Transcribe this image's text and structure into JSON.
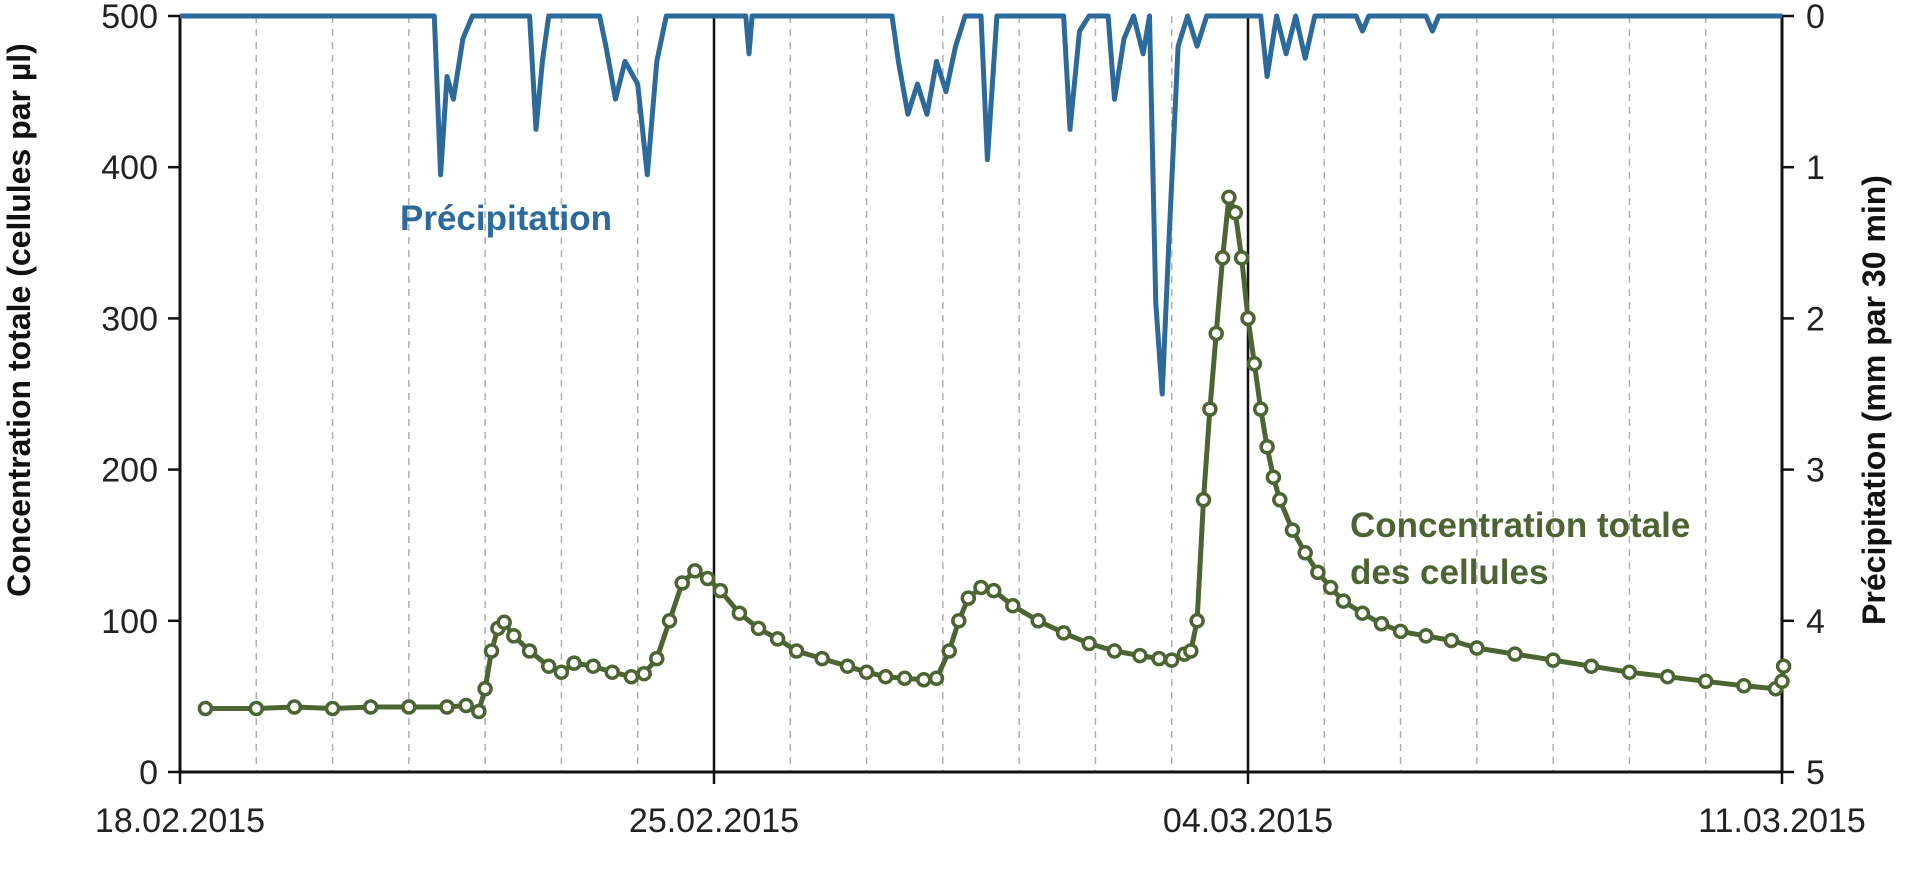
{
  "chart_data": {
    "type": "line",
    "x_axis": {
      "type": "date",
      "range": [
        "2015-02-18",
        "2015-03-11"
      ],
      "tick_labels": [
        "18.02.2015",
        "25.02.2015",
        "04.03.2015",
        "11.03.2015"
      ],
      "major_ticks": [
        "2015-02-18",
        "2015-02-25",
        "2015-03-04",
        "2015-03-11"
      ],
      "minor_gridlines": "daily, dashed"
    },
    "y_left": {
      "label": "Concentration totale (cellules par µl)",
      "range": [
        0,
        500
      ],
      "ticks": [
        "0",
        "100",
        "200",
        "300",
        "400",
        "500"
      ]
    },
    "y_right": {
      "label": "Précipitation (mm par 30 min)",
      "range": [
        0,
        5
      ],
      "inverted": true,
      "ticks": [
        "0",
        "1",
        "2",
        "3",
        "4",
        "5"
      ]
    },
    "series": [
      {
        "name": "Précipitation",
        "label": "Précipitation",
        "axis": "right",
        "color": "#2d6a9c",
        "marker": "none",
        "points": [
          [
            "2015-02-18",
            0
          ],
          [
            "2015-02-21 08:00",
            0
          ],
          [
            "2015-02-21 10:00",
            1.05
          ],
          [
            "2015-02-21 12:00",
            0.4
          ],
          [
            "2015-02-21 14:00",
            0.55
          ],
          [
            "2015-02-21 17:00",
            0.15
          ],
          [
            "2015-02-21 20:00",
            0
          ],
          [
            "2015-02-22 14:00",
            0
          ],
          [
            "2015-02-22 16:00",
            0.75
          ],
          [
            "2015-02-22 18:00",
            0.3
          ],
          [
            "2015-02-22 20:00",
            0
          ],
          [
            "2015-02-23 12:00",
            0
          ],
          [
            "2015-02-23 14:00",
            0.2
          ],
          [
            "2015-02-23 17:00",
            0.55
          ],
          [
            "2015-02-23 20:00",
            0.3
          ],
          [
            "2015-02-24 00:00",
            0.45
          ],
          [
            "2015-02-24 03:00",
            1.05
          ],
          [
            "2015-02-24 06:00",
            0.3
          ],
          [
            "2015-02-24 09:00",
            0
          ],
          [
            "2015-02-25 10:00",
            0
          ],
          [
            "2015-02-25 11:00",
            0.25
          ],
          [
            "2015-02-25 12:00",
            0
          ],
          [
            "2015-02-27 08:00",
            0
          ],
          [
            "2015-02-27 10:00",
            0.3
          ],
          [
            "2015-02-27 13:00",
            0.65
          ],
          [
            "2015-02-27 16:00",
            0.45
          ],
          [
            "2015-02-27 19:00",
            0.65
          ],
          [
            "2015-02-27 22:00",
            0.3
          ],
          [
            "2015-02-28 01:00",
            0.5
          ],
          [
            "2015-02-28 04:00",
            0.2
          ],
          [
            "2015-02-28 07:00",
            0
          ],
          [
            "2015-02-28 12:00",
            0
          ],
          [
            "2015-02-28 14:00",
            0.95
          ],
          [
            "2015-02-28 17:00",
            0
          ],
          [
            "2015-03-01 14:00",
            0
          ],
          [
            "2015-03-01 16:00",
            0.75
          ],
          [
            "2015-03-01 19:00",
            0.1
          ],
          [
            "2015-03-01 22:00",
            0
          ],
          [
            "2015-03-02 04:00",
            0
          ],
          [
            "2015-03-02 06:00",
            0.55
          ],
          [
            "2015-03-02 09:00",
            0.15
          ],
          [
            "2015-03-02 12:00",
            0
          ],
          [
            "2015-03-02 15:00",
            0.25
          ],
          [
            "2015-03-02 17:00",
            0
          ],
          [
            "2015-03-02 19:00",
            1.9
          ],
          [
            "2015-03-02 21:00",
            2.5
          ],
          [
            "2015-03-02 23:00",
            1.55
          ],
          [
            "2015-03-03 02:00",
            0.2
          ],
          [
            "2015-03-03 05:00",
            0
          ],
          [
            "2015-03-03 08:00",
            0.2
          ],
          [
            "2015-03-03 11:00",
            0
          ],
          [
            "2015-03-04 04:00",
            0
          ],
          [
            "2015-03-04 06:00",
            0.4
          ],
          [
            "2015-03-04 09:00",
            0
          ],
          [
            "2015-03-04 12:00",
            0.25
          ],
          [
            "2015-03-04 15:00",
            0
          ],
          [
            "2015-03-04 18:00",
            0.28
          ],
          [
            "2015-03-04 21:00",
            0
          ],
          [
            "2015-03-05 10:00",
            0
          ],
          [
            "2015-03-05 12:00",
            0.1
          ],
          [
            "2015-03-05 14:00",
            0
          ],
          [
            "2015-03-06 08:00",
            0
          ],
          [
            "2015-03-06 10:00",
            0.1
          ],
          [
            "2015-03-06 12:00",
            0
          ],
          [
            "2015-03-11",
            0
          ]
        ]
      },
      {
        "name": "Concentration totale des cellules",
        "label_lines": [
          "Concentration totale",
          "des cellules"
        ],
        "axis": "left",
        "color": "#4a6531",
        "marker": "open-circle",
        "points": [
          [
            "2015-02-18 08:00",
            42
          ],
          [
            "2015-02-19 00:00",
            42
          ],
          [
            "2015-02-19 12:00",
            43
          ],
          [
            "2015-02-20 00:00",
            42
          ],
          [
            "2015-02-20 12:00",
            43
          ],
          [
            "2015-02-21 00:00",
            43
          ],
          [
            "2015-02-21 12:00",
            43
          ],
          [
            "2015-02-21 18:00",
            44
          ],
          [
            "2015-02-21 22:00",
            40
          ],
          [
            "2015-02-22 00:00",
            55
          ],
          [
            "2015-02-22 02:00",
            80
          ],
          [
            "2015-02-22 04:00",
            95
          ],
          [
            "2015-02-22 06:00",
            99
          ],
          [
            "2015-02-22 09:00",
            90
          ],
          [
            "2015-02-22 14:00",
            80
          ],
          [
            "2015-02-22 20:00",
            70
          ],
          [
            "2015-02-23 00:00",
            66
          ],
          [
            "2015-02-23 04:00",
            72
          ],
          [
            "2015-02-23 10:00",
            70
          ],
          [
            "2015-02-23 16:00",
            66
          ],
          [
            "2015-02-23 22:00",
            63
          ],
          [
            "2015-02-24 02:00",
            65
          ],
          [
            "2015-02-24 06:00",
            75
          ],
          [
            "2015-02-24 10:00",
            100
          ],
          [
            "2015-02-24 14:00",
            125
          ],
          [
            "2015-02-24 18:00",
            133
          ],
          [
            "2015-02-24 22:00",
            128
          ],
          [
            "2015-02-25 02:00",
            120
          ],
          [
            "2015-02-25 08:00",
            105
          ],
          [
            "2015-02-25 14:00",
            95
          ],
          [
            "2015-02-25 20:00",
            88
          ],
          [
            "2015-02-26 02:00",
            80
          ],
          [
            "2015-02-26 10:00",
            75
          ],
          [
            "2015-02-26 18:00",
            70
          ],
          [
            "2015-02-27 00:00",
            66
          ],
          [
            "2015-02-27 06:00",
            63
          ],
          [
            "2015-02-27 12:00",
            62
          ],
          [
            "2015-02-27 18:00",
            61
          ],
          [
            "2015-02-27 22:00",
            62
          ],
          [
            "2015-02-28 02:00",
            80
          ],
          [
            "2015-02-28 05:00",
            100
          ],
          [
            "2015-02-28 08:00",
            115
          ],
          [
            "2015-02-28 12:00",
            122
          ],
          [
            "2015-02-28 16:00",
            120
          ],
          [
            "2015-02-28 22:00",
            110
          ],
          [
            "2015-03-01 06:00",
            100
          ],
          [
            "2015-03-01 14:00",
            92
          ],
          [
            "2015-03-01 22:00",
            85
          ],
          [
            "2015-03-02 06:00",
            80
          ],
          [
            "2015-03-02 14:00",
            77
          ],
          [
            "2015-03-02 20:00",
            75
          ],
          [
            "2015-03-03 00:00",
            74
          ],
          [
            "2015-03-03 04:00",
            78
          ],
          [
            "2015-03-03 06:00",
            80
          ],
          [
            "2015-03-03 08:00",
            100
          ],
          [
            "2015-03-03 10:00",
            180
          ],
          [
            "2015-03-03 12:00",
            240
          ],
          [
            "2015-03-03 14:00",
            290
          ],
          [
            "2015-03-03 16:00",
            340
          ],
          [
            "2015-03-03 18:00",
            380
          ],
          [
            "2015-03-03 20:00",
            370
          ],
          [
            "2015-03-03 22:00",
            340
          ],
          [
            "2015-03-04 00:00",
            300
          ],
          [
            "2015-03-04 02:00",
            270
          ],
          [
            "2015-03-04 04:00",
            240
          ],
          [
            "2015-03-04 06:00",
            215
          ],
          [
            "2015-03-04 08:00",
            195
          ],
          [
            "2015-03-04 10:00",
            180
          ],
          [
            "2015-03-04 14:00",
            160
          ],
          [
            "2015-03-04 18:00",
            145
          ],
          [
            "2015-03-04 22:00",
            132
          ],
          [
            "2015-03-05 02:00",
            122
          ],
          [
            "2015-03-05 06:00",
            113
          ],
          [
            "2015-03-05 12:00",
            105
          ],
          [
            "2015-03-05 18:00",
            98
          ],
          [
            "2015-03-06 00:00",
            93
          ],
          [
            "2015-03-06 08:00",
            90
          ],
          [
            "2015-03-06 16:00",
            87
          ],
          [
            "2015-03-07 00:00",
            82
          ],
          [
            "2015-03-07 12:00",
            78
          ],
          [
            "2015-03-08 00:00",
            74
          ],
          [
            "2015-03-08 12:00",
            70
          ],
          [
            "2015-03-09 00:00",
            66
          ],
          [
            "2015-03-09 12:00",
            63
          ],
          [
            "2015-03-10 00:00",
            60
          ],
          [
            "2015-03-10 12:00",
            57
          ],
          [
            "2015-03-10 22:00",
            55
          ],
          [
            "2015-03-11 00:00",
            60
          ],
          [
            "2015-03-11 00:30",
            70
          ]
        ]
      }
    ]
  }
}
